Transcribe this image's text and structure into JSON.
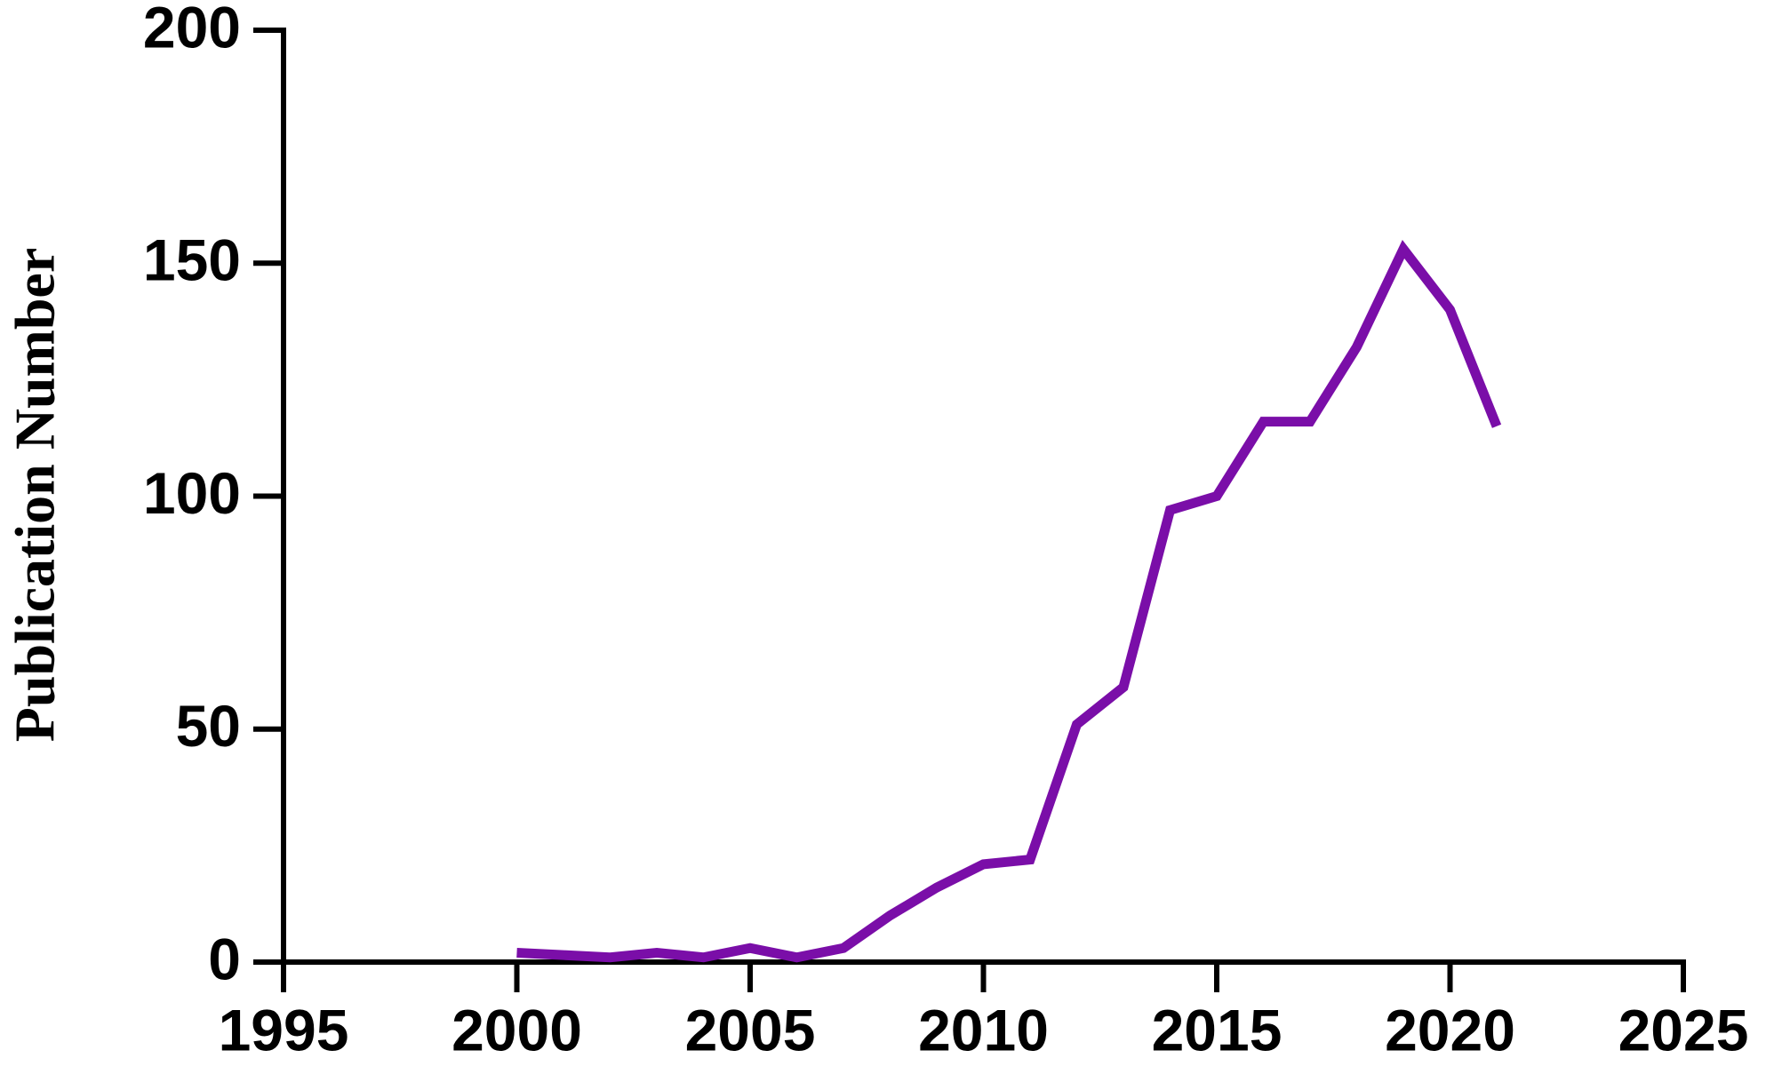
{
  "chart_data": {
    "type": "line",
    "y_label": "Publication Number",
    "x": [
      2000,
      2001,
      2002,
      2003,
      2004,
      2005,
      2006,
      2007,
      2008,
      2009,
      2010,
      2011,
      2012,
      2013,
      2014,
      2015,
      2016,
      2017,
      2018,
      2019,
      2020,
      2021
    ],
    "series": [
      {
        "name": "Publication Number",
        "color": "#7a0ea8",
        "values": [
          2,
          1.5,
          1,
          2,
          1,
          3,
          1,
          3,
          10,
          16,
          21,
          22,
          51,
          59,
          97,
          100,
          116,
          116,
          132,
          153,
          140,
          115
        ]
      }
    ],
    "xlim": [
      1995,
      2025
    ],
    "xticks": [
      1995,
      2000,
      2005,
      2010,
      2015,
      2020,
      2025
    ],
    "ylim": [
      0,
      200
    ],
    "yticks": [
      0,
      50,
      100,
      150,
      200
    ],
    "grid": false
  }
}
